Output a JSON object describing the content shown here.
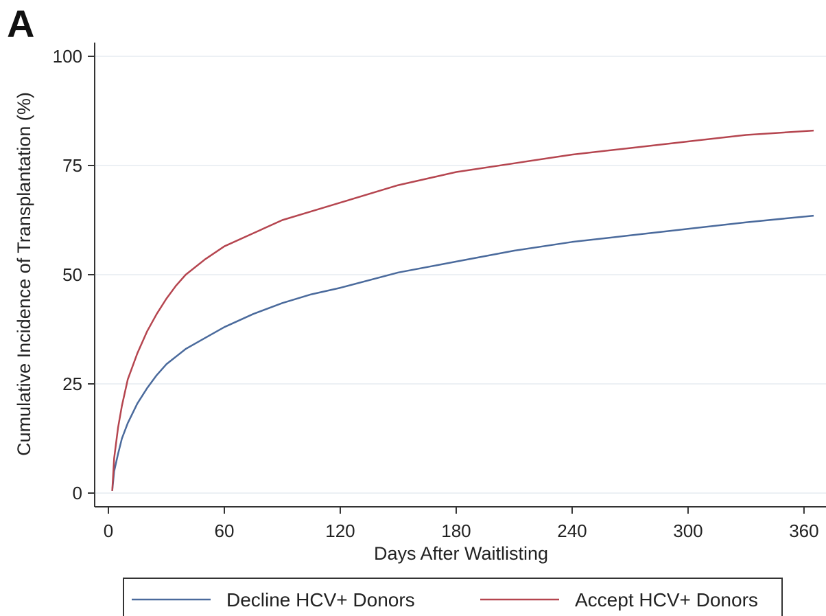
{
  "panel_label": "A",
  "colors": {
    "decline": "#4a6a9c",
    "accept": "#b5454f",
    "grid": "#e6ebf0",
    "axis": "#333333"
  },
  "chart_data": {
    "type": "line",
    "title": "",
    "xlabel": "Days After Waitlisting",
    "ylabel": "Cumulative Incidence of Transplantation (%)",
    "xlim": [
      0,
      365
    ],
    "ylim": [
      0,
      100
    ],
    "xticks": [
      0,
      60,
      120,
      180,
      240,
      300,
      360
    ],
    "yticks": [
      0,
      25,
      50,
      75,
      100
    ],
    "grid": true,
    "legend_position": "bottom",
    "series": [
      {
        "name": "Decline HCV+ Donors",
        "color": "#4a6a9c",
        "x": [
          2,
          3,
          5,
          7,
          10,
          15,
          20,
          25,
          30,
          40,
          50,
          60,
          75,
          90,
          105,
          120,
          150,
          180,
          210,
          240,
          270,
          300,
          330,
          365
        ],
        "y": [
          0.5,
          5,
          9,
          12.5,
          16,
          20.5,
          24,
          27,
          29.5,
          33,
          35.5,
          38,
          41,
          43.5,
          45.5,
          47,
          50.5,
          53,
          55.5,
          57.5,
          59,
          60.5,
          62,
          63.5
        ]
      },
      {
        "name": "Accept HCV+ Donors",
        "color": "#b5454f",
        "x": [
          2,
          3,
          5,
          7,
          10,
          15,
          20,
          25,
          30,
          35,
          40,
          50,
          60,
          75,
          90,
          105,
          120,
          150,
          180,
          210,
          240,
          270,
          300,
          330,
          365
        ],
        "y": [
          0.5,
          8,
          15,
          20,
          26,
          32,
          37,
          41,
          44.5,
          47.5,
          50,
          53.5,
          56.5,
          59.5,
          62.5,
          64.5,
          66.5,
          70.5,
          73.5,
          75.5,
          77.5,
          79,
          80.5,
          82,
          83
        ]
      }
    ]
  }
}
